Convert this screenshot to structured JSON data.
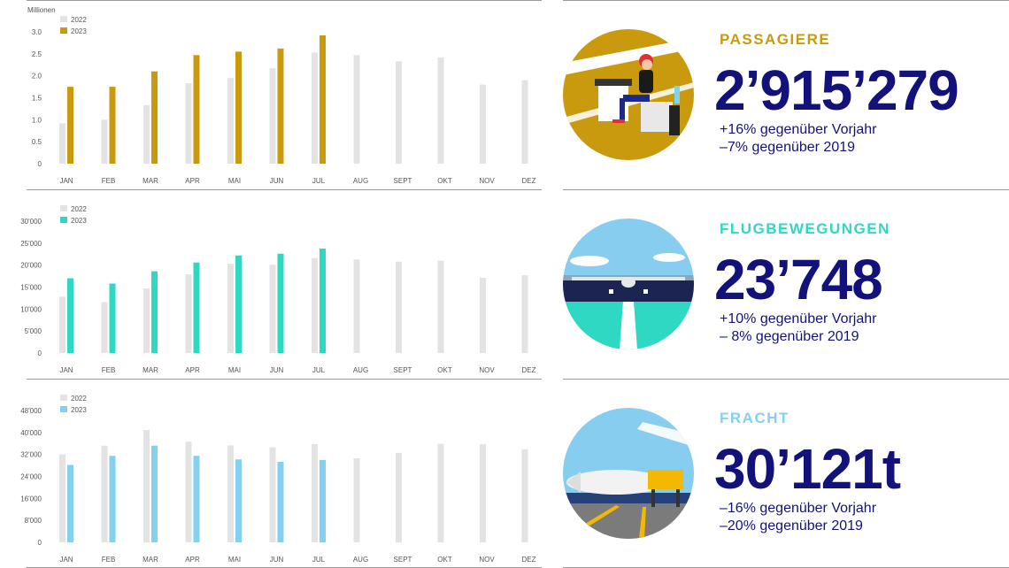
{
  "chart_data": [
    {
      "type": "bar",
      "ylabel": "Millionen",
      "categories": [
        "JAN",
        "FEB",
        "MAR",
        "APR",
        "MAI",
        "JUN",
        "JUL",
        "AUG",
        "SEPT",
        "OKT",
        "NOV",
        "DEZ"
      ],
      "yticks": [
        "0",
        "0.5",
        "1.0",
        "1.5",
        "2.0",
        "2.5",
        "3.0"
      ],
      "ylim": [
        0,
        3.0
      ],
      "legend_position": "top-left",
      "series": [
        {
          "name": "2022",
          "color": "#e3e3e3",
          "values": [
            0.92,
            1.0,
            1.33,
            1.83,
            1.95,
            2.17,
            2.53,
            2.47,
            2.33,
            2.42,
            1.8,
            1.9
          ]
        },
        {
          "name": "2023",
          "color": "#c99a0e",
          "values": [
            1.75,
            1.75,
            2.1,
            2.47,
            2.55,
            2.62,
            2.92,
            null,
            null,
            null,
            null,
            null
          ]
        }
      ]
    },
    {
      "type": "bar",
      "ylabel": "",
      "categories": [
        "JAN",
        "FEB",
        "MAR",
        "APR",
        "MAI",
        "JUN",
        "JUL",
        "AUG",
        "SEPT",
        "OKT",
        "NOV",
        "DEZ"
      ],
      "yticks": [
        "0",
        "5'000",
        "10'000",
        "15'000",
        "20'000",
        "25'000",
        "30'000"
      ],
      "ylim": [
        0,
        30000
      ],
      "legend_position": "top-left",
      "series": [
        {
          "name": "2022",
          "color": "#e3e3e3",
          "values": [
            12800,
            11600,
            14700,
            17900,
            20300,
            20100,
            21600,
            21300,
            20800,
            21000,
            17100,
            17700
          ]
        },
        {
          "name": "2023",
          "color": "#2ed8c3",
          "values": [
            17000,
            15800,
            18600,
            20600,
            22200,
            22600,
            23748,
            null,
            null,
            null,
            null,
            null
          ]
        }
      ]
    },
    {
      "type": "bar",
      "ylabel": "",
      "categories": [
        "JAN",
        "FEB",
        "MAR",
        "APR",
        "MAI",
        "JUN",
        "JUL",
        "AUG",
        "SEPT",
        "OKT",
        "NOV",
        "DEZ"
      ],
      "yticks": [
        "0",
        "8'000",
        "16'000",
        "24'000",
        "32'000",
        "40'000",
        "48'000"
      ],
      "ylim": [
        0,
        48000
      ],
      "legend_position": "top-left",
      "series": [
        {
          "name": "2022",
          "color": "#e3e3e3",
          "values": [
            32000,
            35200,
            40900,
            36700,
            35300,
            34600,
            35800,
            30600,
            32600,
            35900,
            35700,
            33900
          ]
        },
        {
          "name": "2023",
          "color": "#84d0f0",
          "values": [
            28200,
            31500,
            35200,
            31500,
            30200,
            29300,
            30000,
            null,
            null,
            null,
            null,
            null
          ]
        }
      ]
    }
  ],
  "metrics": [
    {
      "label": "PASSAGIERE",
      "label_color": "#c99a0e",
      "value": "2’915’279",
      "sub1": "+16% gegenüber Vorjahr",
      "sub2": "–7% gegenüber 2019"
    },
    {
      "label": "FLUGBEWEGUNGEN",
      "label_color": "#2ed8c3",
      "value": "23’748",
      "sub1": "+10% gegenüber Vorjahr",
      "sub2": "– 8% gegenüber 2019"
    },
    {
      "label": "FRACHT",
      "label_color": "#84d0f0",
      "value": "30’121t",
      "sub1": "–16% gegenüber Vorjahr",
      "sub2": "–20% gegenüber 2019"
    }
  ],
  "illustrations": [
    "passenger-lounge-icon",
    "airplane-runway-icon",
    "cargo-airplane-icon"
  ]
}
